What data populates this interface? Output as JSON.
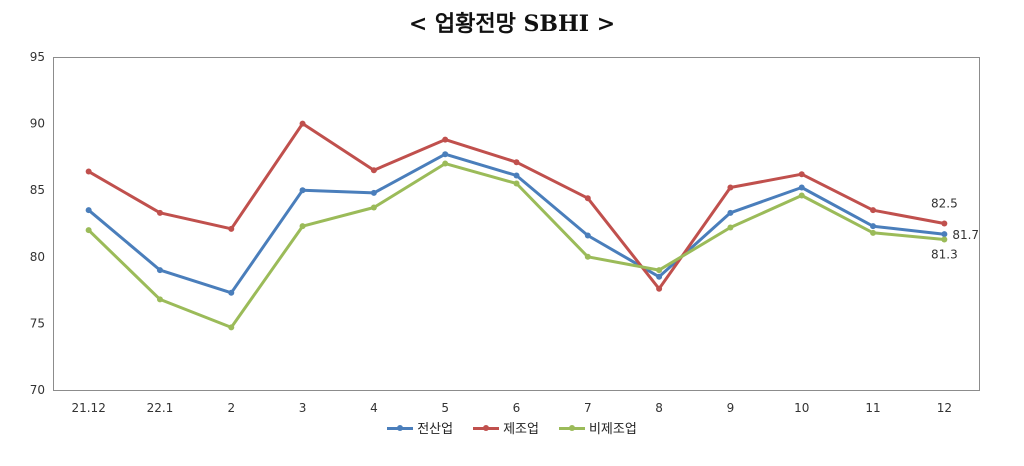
{
  "title": "< 업황전망 SBHI >",
  "chart_data": {
    "type": "line",
    "categories": [
      "21.12",
      "22.1",
      "2",
      "3",
      "4",
      "5",
      "6",
      "7",
      "8",
      "9",
      "10",
      "11",
      "12"
    ],
    "series": [
      {
        "name": "전산업",
        "color": "#4a7ebb",
        "values": [
          83.5,
          79.0,
          77.3,
          85.0,
          84.8,
          87.7,
          86.1,
          81.6,
          78.5,
          83.3,
          85.2,
          82.3,
          81.7
        ]
      },
      {
        "name": "제조업",
        "color": "#c0504d",
        "values": [
          86.4,
          83.3,
          82.1,
          90.0,
          86.5,
          88.8,
          87.1,
          84.4,
          77.6,
          85.2,
          86.2,
          83.5,
          82.5
        ]
      },
      {
        "name": "비제조업",
        "color": "#9bbb59",
        "values": [
          82.0,
          76.8,
          74.7,
          82.3,
          83.7,
          87.0,
          85.5,
          80.0,
          79.0,
          82.2,
          84.6,
          81.8,
          81.3
        ]
      }
    ],
    "ylim": [
      70,
      95
    ],
    "yticks": [
      "95",
      "90",
      "85",
      "80",
      "75",
      "70"
    ],
    "data_labels": [
      {
        "series": "제조업",
        "category": "12",
        "text": "82.5"
      },
      {
        "series": "전산업",
        "category": "12",
        "text": "81.7"
      },
      {
        "series": "비제조업",
        "category": "12",
        "text": "81.3"
      }
    ],
    "grid": false,
    "legend_position": "bottom"
  }
}
